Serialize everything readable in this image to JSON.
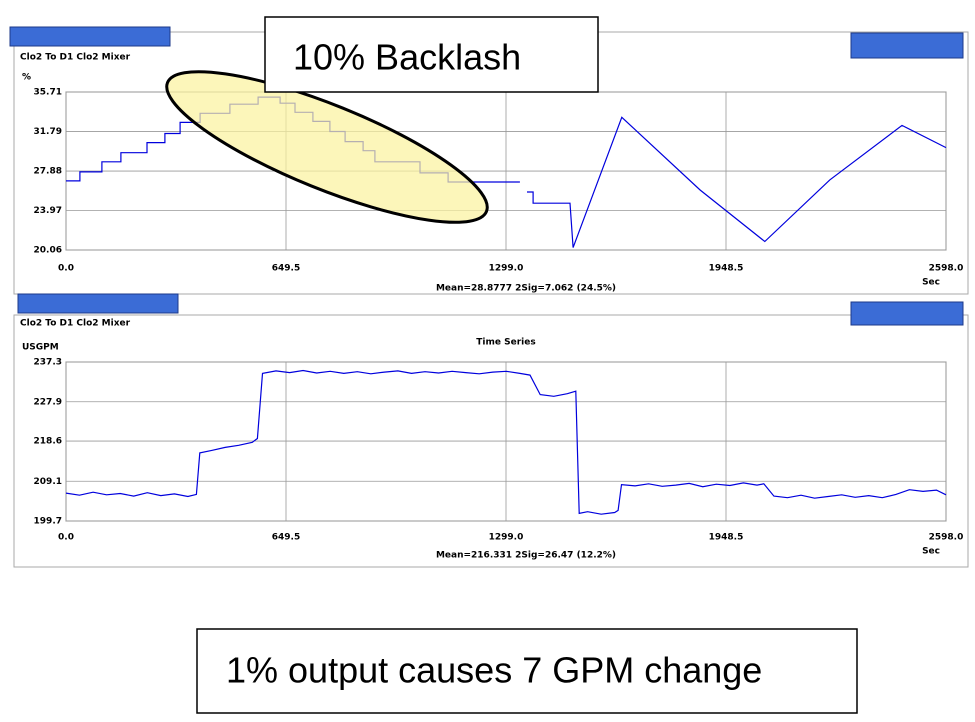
{
  "chart_data": [
    {
      "type": "line",
      "title": "Clo2 To D1 Clo2 Mixer",
      "y_label": "%",
      "x_label": "Sec",
      "stats": "Mean=28.8777  2Sig=7.062  (24.5%)",
      "color": "#0000dd",
      "grid": true,
      "x": [
        0,
        41,
        41,
        106,
        106,
        162,
        162,
        239,
        239,
        292,
        292,
        337,
        337,
        396,
        396,
        484,
        484,
        567,
        567,
        632,
        632,
        676,
        676,
        729,
        729,
        779,
        779,
        824,
        824,
        877,
        877,
        912,
        912,
        1045,
        1045,
        1128,
        1128,
        1340,
        1350,
        1361,
        1379,
        1379,
        1488,
        1497,
        1641,
        1872,
        2063,
        2255,
        2468,
        2598
      ],
      "values": [
        26.9,
        26.9,
        27.8,
        27.8,
        28.8,
        28.8,
        29.7,
        29.7,
        30.7,
        30.7,
        31.6,
        31.6,
        32.7,
        32.7,
        33.6,
        33.6,
        34.5,
        34.5,
        35.2,
        35.2,
        34.6,
        34.6,
        33.7,
        33.7,
        32.8,
        32.8,
        31.8,
        31.8,
        30.8,
        30.8,
        29.9,
        29.9,
        28.8,
        28.8,
        27.7,
        27.7,
        26.8,
        26.8,
        null,
        25.8,
        25.8,
        24.7,
        24.7,
        20.3,
        33.2,
        26.0,
        20.9,
        27.0,
        32.4,
        30.2
      ],
      "xlim": [
        0,
        2598
      ],
      "ylim": [
        20.06,
        35.71
      ],
      "xticks": [
        {
          "value": 0,
          "label": "0.0"
        },
        649.5,
        {
          "value": 1299,
          "label": "1299.0"
        },
        1948.5,
        {
          "value": 2598,
          "label": "2598.0"
        }
      ],
      "yticks": [
        35.71,
        31.79,
        27.88,
        23.97,
        20.06
      ]
    },
    {
      "type": "line",
      "title": "Clo2 To D1 Clo2 Mixer",
      "subtitle": "Time Series",
      "y_label": "USGPM",
      "x_label": "Sec",
      "stats": "Mean=216.331  2Sig=26.47  (12.2%)",
      "color": "#0000dd",
      "grid": true,
      "x": [
        0,
        40,
        80,
        120,
        160,
        200,
        240,
        280,
        320,
        360,
        385,
        395,
        430,
        470,
        510,
        550,
        565,
        580,
        620,
        660,
        700,
        740,
        780,
        820,
        860,
        900,
        940,
        980,
        1020,
        1060,
        1100,
        1140,
        1180,
        1220,
        1260,
        1300,
        1340,
        1370,
        1400,
        1440,
        1480,
        1505,
        1515,
        1540,
        1580,
        1620,
        1630,
        1640,
        1680,
        1720,
        1760,
        1800,
        1840,
        1880,
        1920,
        1960,
        2000,
        2040,
        2060,
        2090,
        2130,
        2170,
        2210,
        2250,
        2290,
        2330,
        2370,
        2410,
        2450,
        2490,
        2530,
        2570,
        2598
      ],
      "values": [
        206.3,
        205.8,
        206.5,
        205.9,
        206.2,
        205.6,
        206.4,
        205.7,
        206.1,
        205.5,
        206.0,
        215.8,
        216.4,
        217.1,
        217.6,
        218.3,
        219.2,
        234.6,
        235.2,
        234.8,
        235.3,
        234.7,
        235.1,
        234.6,
        235.0,
        234.5,
        234.9,
        235.2,
        234.6,
        235.0,
        234.7,
        235.1,
        234.8,
        234.5,
        234.9,
        235.1,
        234.6,
        234.2,
        229.6,
        229.2,
        229.8,
        230.4,
        201.5,
        201.9,
        201.3,
        201.7,
        202.2,
        208.3,
        208.0,
        208.5,
        207.9,
        208.2,
        208.6,
        207.8,
        208.4,
        208.1,
        208.7,
        208.2,
        208.5,
        205.6,
        205.2,
        205.8,
        205.1,
        205.5,
        205.9,
        205.3,
        205.7,
        205.2,
        206.0,
        207.1,
        206.7,
        207.0,
        205.9
      ],
      "xlim": [
        0,
        2598
      ],
      "ylim": [
        199.7,
        237.3
      ],
      "xticks": [
        {
          "value": 0,
          "label": "0.0"
        },
        649.5,
        {
          "value": 1299,
          "label": "1299.0"
        },
        1948.5,
        {
          "value": 2598,
          "label": "2598.0"
        }
      ],
      "yticks": [
        237.3,
        227.9,
        218.6,
        209.1,
        199.7
      ]
    }
  ],
  "annotations": {
    "callout": "10% Backlash",
    "caption": "1% output causes 7 GPM change"
  }
}
